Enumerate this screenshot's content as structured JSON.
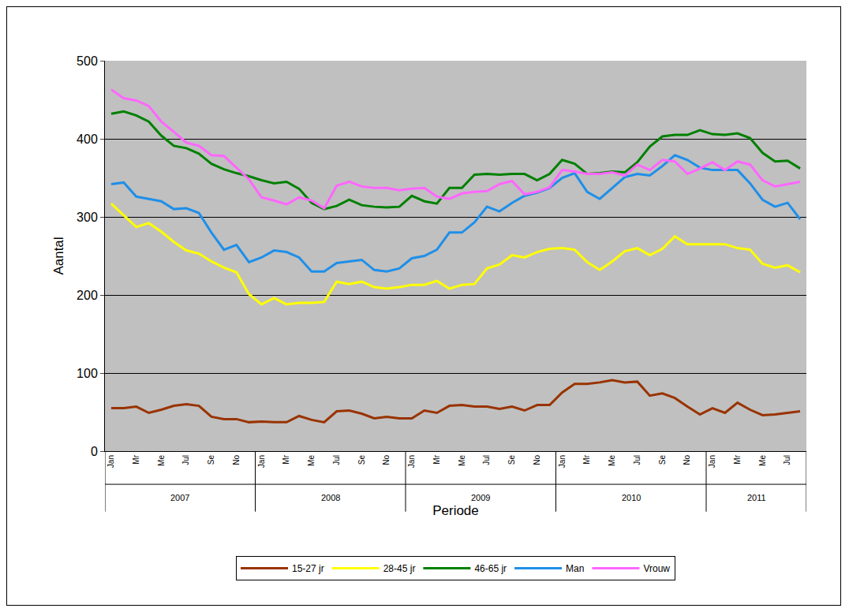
{
  "chart_data": {
    "type": "line",
    "x_label": "Periode",
    "y_label": "Aantal",
    "categories": [
      "Jan",
      null,
      "Mr",
      null,
      "Me",
      null,
      "Jul",
      null,
      "Se",
      null,
      "No",
      null,
      "Jan",
      null,
      "Mr",
      null,
      "Me",
      null,
      "Jul",
      null,
      "Se",
      null,
      "No",
      null,
      "Jan",
      null,
      "Mr",
      null,
      "Me",
      null,
      "Jul",
      null,
      "Se",
      null,
      "No",
      null,
      "Jan",
      null,
      "Mr",
      null,
      "Me",
      null,
      "Jul",
      null,
      "Se",
      null,
      "No",
      null,
      "Jan",
      null,
      "Mr",
      null,
      "Me",
      null,
      "Jul",
      null
    ],
    "years": [
      "2007",
      "2008",
      "2009",
      "2010",
      "2011"
    ],
    "ylim": [
      0,
      500
    ],
    "yticks": [
      0,
      100,
      200,
      300,
      400,
      500
    ],
    "grid": true,
    "legend": "bottom",
    "series": [
      {
        "name": "15-27 jr",
        "color": "#993300",
        "values": [
          55,
          55,
          57,
          49,
          53,
          58,
          60,
          58,
          44,
          41,
          41,
          37,
          38,
          37,
          37,
          45,
          40,
          37,
          51,
          52,
          48,
          42,
          44,
          42,
          42,
          52,
          49,
          58,
          59,
          57,
          57,
          54,
          57,
          52,
          59,
          59,
          75,
          86,
          86,
          88,
          91,
          88,
          89,
          71,
          74,
          68,
          57,
          47,
          55,
          49,
          62,
          53,
          46,
          47,
          49,
          51
        ]
      },
      {
        "name": "28-45 jr",
        "color": "#FFFF00",
        "values": [
          317,
          302,
          287,
          292,
          281,
          268,
          257,
          253,
          243,
          235,
          229,
          201,
          188,
          196,
          188,
          190,
          190,
          191,
          217,
          214,
          217,
          210,
          208,
          210,
          213,
          213,
          218,
          208,
          213,
          214,
          234,
          239,
          251,
          248,
          255,
          259,
          260,
          258,
          242,
          232,
          243,
          256,
          260,
          251,
          259,
          275,
          265,
          265,
          265,
          265,
          260,
          258,
          240,
          235,
          238,
          229
        ]
      },
      {
        "name": "46-65 jr",
        "color": "#008000",
        "values": [
          432,
          435,
          430,
          422,
          404,
          391,
          388,
          381,
          368,
          361,
          356,
          352,
          347,
          343,
          345,
          336,
          318,
          310,
          314,
          322,
          315,
          313,
          312,
          313,
          327,
          320,
          317,
          337,
          337,
          354,
          355,
          354,
          355,
          355,
          347,
          355,
          373,
          368,
          355,
          356,
          358,
          357,
          370,
          390,
          403,
          405,
          405,
          411,
          406,
          405,
          407,
          401,
          382,
          371,
          372,
          362
        ]
      },
      {
        "name": "Man",
        "color": "#1F8FE8",
        "values": [
          342,
          344,
          326,
          323,
          320,
          310,
          311,
          305,
          280,
          258,
          264,
          242,
          248,
          257,
          255,
          248,
          230,
          230,
          241,
          243,
          245,
          232,
          230,
          234,
          247,
          250,
          258,
          280,
          280,
          293,
          313,
          307,
          318,
          327,
          331,
          337,
          350,
          356,
          332,
          323,
          337,
          351,
          355,
          353,
          365,
          379,
          373,
          363,
          360,
          360,
          360,
          343,
          322,
          313,
          318,
          297
        ]
      },
      {
        "name": "Vrouw",
        "color": "#FF66FF",
        "values": [
          463,
          452,
          449,
          442,
          422,
          409,
          395,
          391,
          379,
          378,
          363,
          348,
          325,
          321,
          316,
          325,
          321,
          311,
          340,
          345,
          339,
          337,
          337,
          334,
          336,
          337,
          326,
          323,
          330,
          332,
          333,
          342,
          346,
          329,
          332,
          338,
          360,
          358,
          355,
          355,
          357,
          353,
          367,
          360,
          373,
          371,
          355,
          362,
          370,
          360,
          371,
          367,
          347,
          339,
          342,
          345
        ]
      }
    ]
  }
}
